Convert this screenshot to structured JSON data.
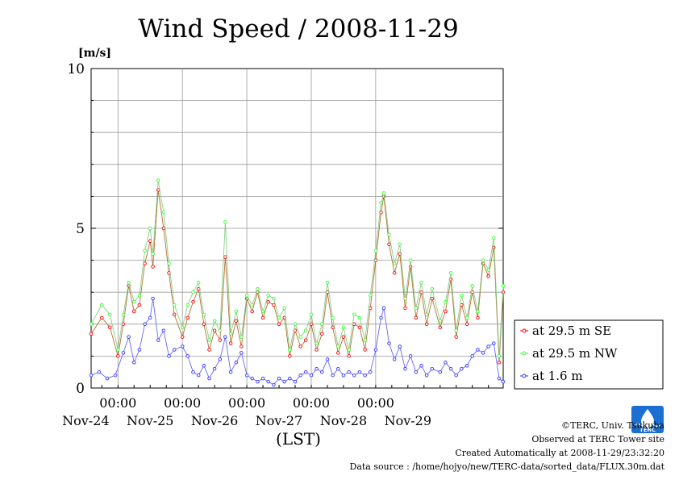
{
  "chart_data": {
    "type": "line",
    "title": "Wind Speed / 2008-11-29",
    "ylabel": "[m/s]",
    "xlabel": "(LST)",
    "ylim": [
      0,
      10
    ],
    "yticks": [
      "0",
      "5",
      "10"
    ],
    "x_time_ticks": [
      "00:00",
      "00:00",
      "00:00",
      "00:00",
      "00:00"
    ],
    "x_date_ticks": [
      "Nov-24",
      "Nov-25",
      "Nov-26",
      "Nov-27",
      "Nov-28",
      "Nov-29"
    ],
    "xlim": [
      "2008-11-23T14:00",
      "2008-11-29T23:30"
    ],
    "legend_position": "right",
    "grid": true,
    "series": [
      {
        "name": "at 29.5 m SE",
        "color": "#ff0000",
        "line_color": "#b07030",
        "points": [
          [
            "2008-11-23T14:00",
            1.7
          ],
          [
            "2008-11-23T18:00",
            2.2
          ],
          [
            "2008-11-23T21:00",
            1.9
          ],
          [
            "2008-11-24T00:00",
            1.0
          ],
          [
            "2008-11-24T02:00",
            2.0
          ],
          [
            "2008-11-24T04:00",
            3.2
          ],
          [
            "2008-11-24T06:00",
            2.4
          ],
          [
            "2008-11-24T08:00",
            2.6
          ],
          [
            "2008-11-24T10:00",
            3.9
          ],
          [
            "2008-11-24T12:00",
            4.6
          ],
          [
            "2008-11-24T13:00",
            3.8
          ],
          [
            "2008-11-24T15:00",
            6.2
          ],
          [
            "2008-11-24T17:00",
            5.0
          ],
          [
            "2008-11-24T19:00",
            3.6
          ],
          [
            "2008-11-24T21:00",
            2.3
          ],
          [
            "2008-11-25T00:00",
            1.6
          ],
          [
            "2008-11-25T02:00",
            2.2
          ],
          [
            "2008-11-25T04:00",
            2.7
          ],
          [
            "2008-11-25T06:00",
            3.1
          ],
          [
            "2008-11-25T08:00",
            2.0
          ],
          [
            "2008-11-25T10:00",
            1.2
          ],
          [
            "2008-11-25T12:00",
            1.8
          ],
          [
            "2008-11-25T14:00",
            1.5
          ],
          [
            "2008-11-25T16:00",
            4.1
          ],
          [
            "2008-11-25T18:00",
            1.4
          ],
          [
            "2008-11-25T20:00",
            2.1
          ],
          [
            "2008-11-25T22:00",
            1.3
          ],
          [
            "2008-11-26T00:00",
            2.8
          ],
          [
            "2008-11-26T02:00",
            2.4
          ],
          [
            "2008-11-26T04:00",
            3.0
          ],
          [
            "2008-11-26T06:00",
            2.2
          ],
          [
            "2008-11-26T08:00",
            2.7
          ],
          [
            "2008-11-26T10:00",
            2.6
          ],
          [
            "2008-11-26T12:00",
            2.0
          ],
          [
            "2008-11-26T14:00",
            2.2
          ],
          [
            "2008-11-26T16:00",
            1.0
          ],
          [
            "2008-11-26T18:00",
            1.8
          ],
          [
            "2008-11-26T20:00",
            1.3
          ],
          [
            "2008-11-26T22:00",
            1.5
          ],
          [
            "2008-11-27T00:00",
            2.0
          ],
          [
            "2008-11-27T02:00",
            1.2
          ],
          [
            "2008-11-27T04:00",
            1.7
          ],
          [
            "2008-11-27T06:00",
            3.0
          ],
          [
            "2008-11-27T08:00",
            1.9
          ],
          [
            "2008-11-27T10:00",
            1.1
          ],
          [
            "2008-11-27T12:00",
            1.6
          ],
          [
            "2008-11-27T14:00",
            1.0
          ],
          [
            "2008-11-27T16:00",
            2.0
          ],
          [
            "2008-11-27T18:00",
            1.9
          ],
          [
            "2008-11-27T20:00",
            1.2
          ],
          [
            "2008-11-27T22:00",
            2.5
          ],
          [
            "2008-11-28T00:00",
            4.0
          ],
          [
            "2008-11-28T02:00",
            5.5
          ],
          [
            "2008-11-28T03:00",
            6.0
          ],
          [
            "2008-11-28T05:00",
            4.5
          ],
          [
            "2008-11-28T07:00",
            3.6
          ],
          [
            "2008-11-28T09:00",
            4.2
          ],
          [
            "2008-11-28T11:00",
            2.5
          ],
          [
            "2008-11-28T13:00",
            3.8
          ],
          [
            "2008-11-28T15:00",
            2.2
          ],
          [
            "2008-11-28T17:00",
            3.0
          ],
          [
            "2008-11-28T19:00",
            2.0
          ],
          [
            "2008-11-28T21:00",
            2.8
          ],
          [
            "2008-11-29T00:00",
            1.9
          ],
          [
            "2008-11-29T02:00",
            2.4
          ],
          [
            "2008-11-29T04:00",
            3.4
          ],
          [
            "2008-11-29T06:00",
            1.6
          ],
          [
            "2008-11-29T08:00",
            2.6
          ],
          [
            "2008-11-29T10:00",
            2.0
          ],
          [
            "2008-11-29T12:00",
            3.0
          ],
          [
            "2008-11-29T14:00",
            2.2
          ],
          [
            "2008-11-29T16:00",
            3.9
          ],
          [
            "2008-11-29T18:00",
            3.5
          ],
          [
            "2008-11-29T20:00",
            4.4
          ],
          [
            "2008-11-29T22:00",
            0.8
          ],
          [
            "2008-11-29T23:30",
            3.0
          ]
        ]
      },
      {
        "name": "at 29.5 m NW",
        "color": "#33ff33",
        "line_color": "#88cc88",
        "points": [
          [
            "2008-11-23T14:00",
            2.0
          ],
          [
            "2008-11-23T18:00",
            2.6
          ],
          [
            "2008-11-23T21:00",
            2.3
          ],
          [
            "2008-11-24T00:00",
            1.2
          ],
          [
            "2008-11-24T02:00",
            2.3
          ],
          [
            "2008-11-24T04:00",
            3.3
          ],
          [
            "2008-11-24T06:00",
            2.7
          ],
          [
            "2008-11-24T08:00",
            2.9
          ],
          [
            "2008-11-24T10:00",
            4.3
          ],
          [
            "2008-11-24T12:00",
            5.0
          ],
          [
            "2008-11-24T13:00",
            4.2
          ],
          [
            "2008-11-24T15:00",
            6.5
          ],
          [
            "2008-11-24T17:00",
            5.5
          ],
          [
            "2008-11-24T19:00",
            3.9
          ],
          [
            "2008-11-24T21:00",
            2.6
          ],
          [
            "2008-11-25T00:00",
            1.9
          ],
          [
            "2008-11-25T02:00",
            2.6
          ],
          [
            "2008-11-25T04:00",
            3.0
          ],
          [
            "2008-11-25T06:00",
            3.3
          ],
          [
            "2008-11-25T08:00",
            2.3
          ],
          [
            "2008-11-25T10:00",
            1.5
          ],
          [
            "2008-11-25T12:00",
            2.1
          ],
          [
            "2008-11-25T14:00",
            1.8
          ],
          [
            "2008-11-25T16:00",
            5.2
          ],
          [
            "2008-11-25T18:00",
            1.7
          ],
          [
            "2008-11-25T20:00",
            2.4
          ],
          [
            "2008-11-25T22:00",
            1.6
          ],
          [
            "2008-11-26T00:00",
            2.9
          ],
          [
            "2008-11-26T02:00",
            2.6
          ],
          [
            "2008-11-26T04:00",
            3.1
          ],
          [
            "2008-11-26T06:00",
            2.4
          ],
          [
            "2008-11-26T08:00",
            2.9
          ],
          [
            "2008-11-26T10:00",
            2.8
          ],
          [
            "2008-11-26T12:00",
            2.2
          ],
          [
            "2008-11-26T14:00",
            2.5
          ],
          [
            "2008-11-26T16:00",
            1.2
          ],
          [
            "2008-11-26T18:00",
            2.0
          ],
          [
            "2008-11-26T20:00",
            1.6
          ],
          [
            "2008-11-26T22:00",
            1.8
          ],
          [
            "2008-11-27T00:00",
            2.3
          ],
          [
            "2008-11-27T02:00",
            1.4
          ],
          [
            "2008-11-27T04:00",
            2.0
          ],
          [
            "2008-11-27T06:00",
            3.3
          ],
          [
            "2008-11-27T08:00",
            2.2
          ],
          [
            "2008-11-27T10:00",
            1.3
          ],
          [
            "2008-11-27T12:00",
            1.9
          ],
          [
            "2008-11-27T14:00",
            1.2
          ],
          [
            "2008-11-27T16:00",
            2.3
          ],
          [
            "2008-11-27T18:00",
            2.2
          ],
          [
            "2008-11-27T20:00",
            1.5
          ],
          [
            "2008-11-27T22:00",
            2.9
          ],
          [
            "2008-11-28T00:00",
            4.3
          ],
          [
            "2008-11-28T02:00",
            5.8
          ],
          [
            "2008-11-28T03:00",
            6.1
          ],
          [
            "2008-11-28T05:00",
            4.8
          ],
          [
            "2008-11-28T07:00",
            3.9
          ],
          [
            "2008-11-28T09:00",
            4.5
          ],
          [
            "2008-11-28T11:00",
            2.8
          ],
          [
            "2008-11-28T13:00",
            4.0
          ],
          [
            "2008-11-28T15:00",
            2.5
          ],
          [
            "2008-11-28T17:00",
            3.3
          ],
          [
            "2008-11-28T19:00",
            2.3
          ],
          [
            "2008-11-28T21:00",
            3.1
          ],
          [
            "2008-11-29T00:00",
            2.1
          ],
          [
            "2008-11-29T02:00",
            2.7
          ],
          [
            "2008-11-29T04:00",
            3.6
          ],
          [
            "2008-11-29T06:00",
            1.8
          ],
          [
            "2008-11-29T08:00",
            2.9
          ],
          [
            "2008-11-29T10:00",
            2.2
          ],
          [
            "2008-11-29T12:00",
            3.2
          ],
          [
            "2008-11-29T14:00",
            2.4
          ],
          [
            "2008-11-29T16:00",
            4.0
          ],
          [
            "2008-11-29T18:00",
            3.7
          ],
          [
            "2008-11-29T20:00",
            4.7
          ],
          [
            "2008-11-29T22:00",
            1.0
          ],
          [
            "2008-11-29T23:30",
            3.2
          ]
        ]
      },
      {
        "name": "at 1.6 m",
        "color": "#3333ff",
        "line_color": "#6666ff",
        "points": [
          [
            "2008-11-23T14:00",
            0.4
          ],
          [
            "2008-11-23T17:00",
            0.5
          ],
          [
            "2008-11-23T20:00",
            0.3
          ],
          [
            "2008-11-23T23:00",
            0.4
          ],
          [
            "2008-11-24T02:00",
            1.1
          ],
          [
            "2008-11-24T04:00",
            1.6
          ],
          [
            "2008-11-24T06:00",
            0.8
          ],
          [
            "2008-11-24T08:00",
            1.2
          ],
          [
            "2008-11-24T10:00",
            2.0
          ],
          [
            "2008-11-24T12:00",
            2.2
          ],
          [
            "2008-11-24T13:00",
            2.8
          ],
          [
            "2008-11-24T15:00",
            1.5
          ],
          [
            "2008-11-24T17:00",
            1.8
          ],
          [
            "2008-11-24T19:00",
            1.0
          ],
          [
            "2008-11-24T21:00",
            1.2
          ],
          [
            "2008-11-25T00:00",
            1.3
          ],
          [
            "2008-11-25T02:00",
            1.0
          ],
          [
            "2008-11-25T04:00",
            0.5
          ],
          [
            "2008-11-25T06:00",
            0.4
          ],
          [
            "2008-11-25T08:00",
            0.7
          ],
          [
            "2008-11-25T10:00",
            0.3
          ],
          [
            "2008-11-25T12:00",
            0.6
          ],
          [
            "2008-11-25T14:00",
            0.9
          ],
          [
            "2008-11-25T16:00",
            1.6
          ],
          [
            "2008-11-25T18:00",
            0.5
          ],
          [
            "2008-11-25T20:00",
            0.8
          ],
          [
            "2008-11-25T22:00",
            1.1
          ],
          [
            "2008-11-26T00:00",
            0.4
          ],
          [
            "2008-11-26T02:00",
            0.3
          ],
          [
            "2008-11-26T04:00",
            0.2
          ],
          [
            "2008-11-26T06:00",
            0.3
          ],
          [
            "2008-11-26T08:00",
            0.2
          ],
          [
            "2008-11-26T10:00",
            0.1
          ],
          [
            "2008-11-26T12:00",
            0.3
          ],
          [
            "2008-11-26T14:00",
            0.2
          ],
          [
            "2008-11-26T16:00",
            0.3
          ],
          [
            "2008-11-26T18:00",
            0.2
          ],
          [
            "2008-11-26T20:00",
            0.4
          ],
          [
            "2008-11-26T22:00",
            0.5
          ],
          [
            "2008-11-27T00:00",
            0.4
          ],
          [
            "2008-11-27T02:00",
            0.6
          ],
          [
            "2008-11-27T04:00",
            0.5
          ],
          [
            "2008-11-27T06:00",
            0.9
          ],
          [
            "2008-11-27T08:00",
            0.4
          ],
          [
            "2008-11-27T10:00",
            0.6
          ],
          [
            "2008-11-27T12:00",
            0.4
          ],
          [
            "2008-11-27T14:00",
            0.5
          ],
          [
            "2008-11-27T16:00",
            0.4
          ],
          [
            "2008-11-27T18:00",
            0.5
          ],
          [
            "2008-11-27T20:00",
            0.4
          ],
          [
            "2008-11-27T22:00",
            0.5
          ],
          [
            "2008-11-28T00:00",
            1.2
          ],
          [
            "2008-11-28T02:00",
            2.2
          ],
          [
            "2008-11-28T03:00",
            2.5
          ],
          [
            "2008-11-28T05:00",
            1.4
          ],
          [
            "2008-11-28T07:00",
            0.9
          ],
          [
            "2008-11-28T09:00",
            1.3
          ],
          [
            "2008-11-28T11:00",
            0.6
          ],
          [
            "2008-11-28T13:00",
            1.0
          ],
          [
            "2008-11-28T15:00",
            0.5
          ],
          [
            "2008-11-28T17:00",
            0.7
          ],
          [
            "2008-11-28T19:00",
            0.4
          ],
          [
            "2008-11-28T21:00",
            0.6
          ],
          [
            "2008-11-29T00:00",
            0.5
          ],
          [
            "2008-11-29T02:00",
            0.8
          ],
          [
            "2008-11-29T04:00",
            0.6
          ],
          [
            "2008-11-29T06:00",
            0.4
          ],
          [
            "2008-11-29T08:00",
            0.6
          ],
          [
            "2008-11-29T10:00",
            0.7
          ],
          [
            "2008-11-29T12:00",
            1.0
          ],
          [
            "2008-11-29T14:00",
            1.2
          ],
          [
            "2008-11-29T16:00",
            1.1
          ],
          [
            "2008-11-29T18:00",
            1.3
          ],
          [
            "2008-11-29T20:00",
            1.4
          ],
          [
            "2008-11-29T22:00",
            0.3
          ],
          [
            "2008-11-29T23:30",
            0.2
          ]
        ]
      }
    ]
  },
  "footer": {
    "copyright": "©TERC, Univ. Tsukuba",
    "observed": "Observed at TERC Tower site",
    "created": "Created Automatically at 2008-11-29/23:32:20",
    "source": "Data source : /home/hojyo/new/TERC-data/sorted_data/FLUX.30m.dat"
  },
  "logo": {
    "text": "TERC",
    "color": "#1a6fd0"
  }
}
